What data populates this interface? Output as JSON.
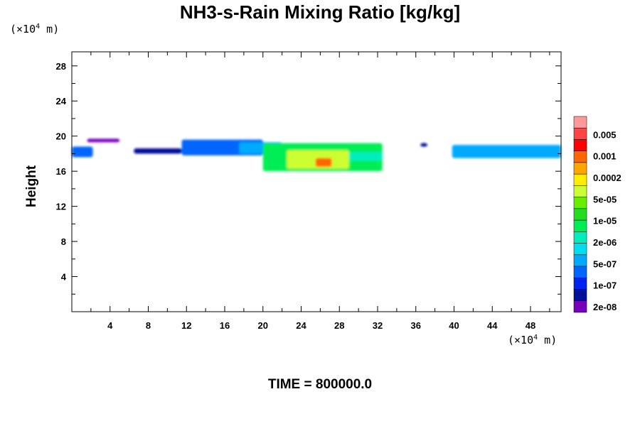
{
  "chart_data": {
    "type": "heatmap",
    "title": "NH3-s-Rain Mixing Ratio [kg/kg]",
    "xlabel": "",
    "ylabel": "Height",
    "x_unit": "(×10⁴ m)",
    "y_unit": "(×10⁴ m)",
    "xlim": [
      0,
      51.2
    ],
    "ylim": [
      0,
      29.6
    ],
    "x_ticks": [
      4,
      8,
      12,
      16,
      20,
      24,
      28,
      32,
      36,
      40,
      44,
      48
    ],
    "y_ticks": [
      4,
      8,
      12,
      16,
      20,
      24,
      28
    ],
    "time_label": "TIME = 800000.0",
    "colorbar": {
      "labels": [
        "0.005",
        "0.001",
        "0.0002",
        "5e-05",
        "1e-05",
        "2e-06",
        "5e-07",
        "1e-07",
        "2e-08"
      ],
      "colors": [
        "#ff9999",
        "#ff4444",
        "#ff0000",
        "#ff6600",
        "#ffa500",
        "#ffee00",
        "#ccff33",
        "#66ee00",
        "#22dd22",
        "#00ee55",
        "#00eebb",
        "#00ddee",
        "#00aaff",
        "#0066ff",
        "#0022ee",
        "#001199",
        "#7700bb"
      ]
    },
    "regions": [
      {
        "x": [
          0,
          2.2
        ],
        "y": [
          17.6,
          18.8
        ],
        "level": 3
      },
      {
        "x": [
          1.6,
          5.0
        ],
        "y": [
          19.3,
          19.7
        ],
        "level": 0
      },
      {
        "x": [
          6.5,
          11.5
        ],
        "y": [
          18.0,
          18.6
        ],
        "level": 1
      },
      {
        "x": [
          11.5,
          20.0
        ],
        "y": [
          17.8,
          19.6
        ],
        "level": 3
      },
      {
        "x": [
          17.5,
          22.0
        ],
        "y": [
          18.0,
          19.3
        ],
        "level": 4
      },
      {
        "x": [
          20.0,
          32.5
        ],
        "y": [
          16.0,
          19.2
        ],
        "level": 7
      },
      {
        "x": [
          22.5,
          29.0
        ],
        "y": [
          16.3,
          18.4
        ],
        "level": 10
      },
      {
        "x": [
          25.5,
          27.2
        ],
        "y": [
          16.5,
          17.5
        ],
        "level": 13
      },
      {
        "x": [
          29.0,
          32.5
        ],
        "y": [
          17.2,
          18.2
        ],
        "level": 6
      },
      {
        "x": [
          39.8,
          51.2
        ],
        "y": [
          17.5,
          19.0
        ],
        "level": 4
      },
      {
        "x": [
          36.5,
          37.2
        ],
        "y": [
          18.8,
          19.2
        ],
        "level": 1
      }
    ]
  }
}
